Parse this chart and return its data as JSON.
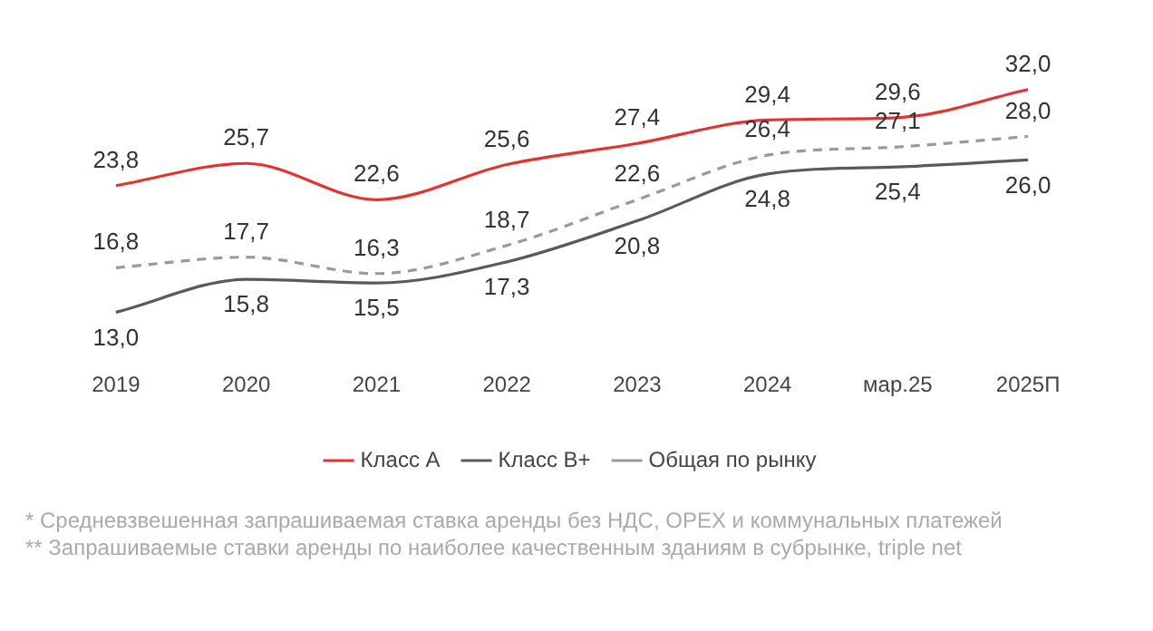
{
  "chart_data": {
    "type": "line",
    "categories": [
      "2019",
      "2020",
      "2021",
      "2022",
      "2023",
      "2024",
      "мар.25",
      "2025П"
    ],
    "series": [
      {
        "name": "Класс А",
        "color": "#e8312f",
        "values": [
          23.8,
          25.7,
          22.6,
          25.6,
          27.4,
          29.4,
          29.6,
          32.0
        ],
        "value_labels": [
          "23,8",
          "25,7",
          "22,6",
          "25,6",
          "27,4",
          "29,4",
          "29,6",
          "32,0"
        ]
      },
      {
        "name": "Класс В+",
        "color": "#5a5a5a",
        "values": [
          13.0,
          15.8,
          15.5,
          17.3,
          20.8,
          24.8,
          25.4,
          26.0
        ],
        "value_labels": [
          "13,0",
          "15,8",
          "15,5",
          "17,3",
          "20,8",
          "24,8",
          "25,4",
          "26,0"
        ]
      },
      {
        "name": "Общая по рынку",
        "color": "#9a9a9a",
        "line_style": "dashed",
        "values": [
          16.8,
          17.7,
          16.3,
          18.7,
          22.6,
          26.4,
          27.1,
          28.0
        ],
        "value_labels": [
          "16,8",
          "17,7",
          "16,3",
          "18,7",
          "22,6",
          "26,4",
          "27,1",
          "28,0"
        ]
      }
    ],
    "grid": false,
    "legend": "bottom",
    "marker": "none",
    "annotations": [
      "* Средневзвешенная запрашиваемая ставка аренды без НДС, OPEX и коммунальных платежей",
      "** Запрашиваемые ставки аренды по наиболее качественным зданиям в субрынке, triple net"
    ]
  }
}
